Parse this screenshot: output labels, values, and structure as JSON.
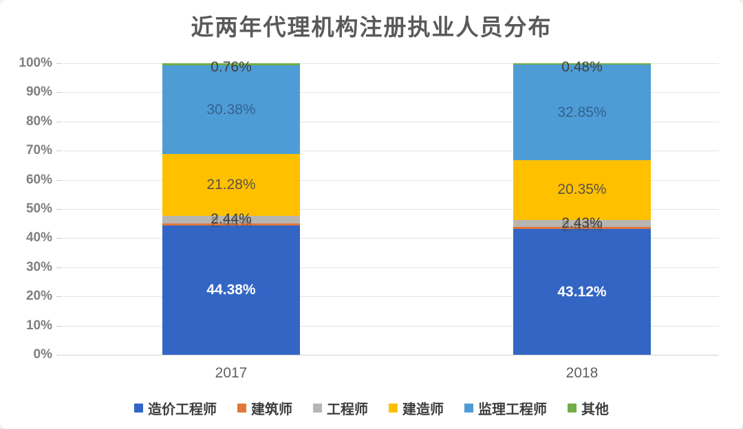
{
  "title": "近两年代理机构注册执业人员分布",
  "axis": {
    "ticks": [
      "0%",
      "10%",
      "20%",
      "30%",
      "40%",
      "50%",
      "60%",
      "70%",
      "80%",
      "90%",
      "100%"
    ]
  },
  "chart_data": {
    "type": "bar",
    "stacked": true,
    "title": "近两年代理机构注册执业人员分布",
    "categories": [
      "2017",
      "2018"
    ],
    "ylim": [
      0,
      100
    ],
    "grid": true,
    "legend_position": "bottom",
    "series": [
      {
        "name": "造价工程师",
        "color": "#3366c4",
        "values": [
          44.38,
          43.12
        ],
        "labels": [
          "44.38%",
          "43.12%"
        ],
        "label_color": "#ffffff",
        "label_bold": true
      },
      {
        "name": "建筑师",
        "color": "#e2763b",
        "values": [
          0.76,
          0.77
        ],
        "labels": [
          "",
          ""
        ],
        "label_color": "#3e3e3e"
      },
      {
        "name": "工程师",
        "color": "#b9b6b2",
        "values": [
          2.44,
          2.43
        ],
        "labels": [
          "2.44%",
          "2.43%"
        ],
        "label_color": "#3e3e3e",
        "ghost": true
      },
      {
        "name": "建造师",
        "color": "#ffc000",
        "values": [
          21.28,
          20.35
        ],
        "labels": [
          "21.28%",
          "20.35%"
        ],
        "label_color": "#5b5347"
      },
      {
        "name": "监理工程师",
        "color": "#4e9cd6",
        "values": [
          30.38,
          32.85
        ],
        "labels": [
          "30.38%",
          "32.85%"
        ],
        "label_color": "#33618e"
      },
      {
        "name": "其他",
        "color": "#6fae44",
        "values": [
          0.76,
          0.48
        ],
        "labels": [
          "0.76%",
          "0.48%"
        ],
        "label_color": "#404040",
        "label_at_top": true
      }
    ]
  }
}
